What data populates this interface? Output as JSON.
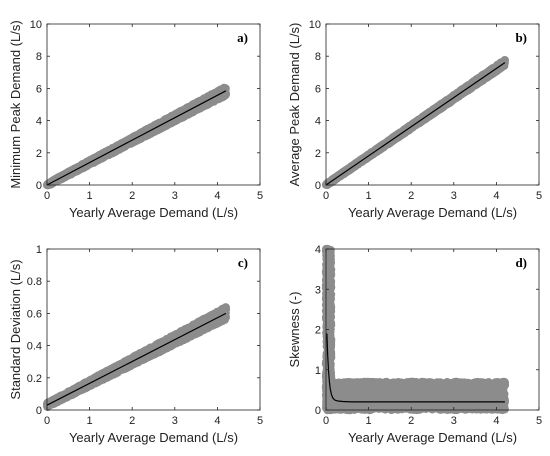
{
  "colors": {
    "scatter": "#8c8c8c",
    "fit_line": "#000000",
    "axes": "#222222",
    "background": "#ffffff"
  },
  "chart_data": [
    {
      "type": "scatter",
      "panel_label": "a)",
      "xlabel": "Yearly Average Demand (L/s)",
      "ylabel": "Minimum Peak Demand (L/s)",
      "xlim": [
        0,
        5
      ],
      "ylim": [
        0,
        10
      ],
      "xticks": [
        0,
        1,
        2,
        3,
        4,
        5
      ],
      "yticks": [
        0,
        2,
        4,
        6,
        8,
        10
      ],
      "grid": false,
      "points": {
        "x_range": [
          0,
          4.2
        ],
        "y_center_slope": 1.39,
        "y_spread": 0.18
      },
      "fit_line": {
        "x": [
          0,
          4.2
        ],
        "y": [
          0,
          5.85
        ]
      }
    },
    {
      "type": "scatter",
      "panel_label": "b)",
      "xlabel": "Yearly Average Demand (L/s)",
      "ylabel": "Average Peak Demand (L/s)",
      "xlim": [
        0,
        5
      ],
      "ylim": [
        0,
        10
      ],
      "xticks": [
        0,
        1,
        2,
        3,
        4,
        5
      ],
      "yticks": [
        0,
        2,
        4,
        6,
        8,
        10
      ],
      "grid": false,
      "points": {
        "x_range": [
          0,
          4.2
        ],
        "y_center_slope": 1.81,
        "y_spread": 0.12
      },
      "fit_line": {
        "x": [
          0,
          4.2
        ],
        "y": [
          0,
          7.6
        ]
      }
    },
    {
      "type": "scatter",
      "panel_label": "c)",
      "xlabel": "Yearly Average Demand (L/s)",
      "ylabel": "Standard Deviation (L/s)",
      "xlim": [
        0,
        5
      ],
      "ylim": [
        0,
        1
      ],
      "xticks": [
        0,
        1,
        2,
        3,
        4,
        5
      ],
      "yticks": [
        0,
        0.2,
        0.4,
        0.6,
        0.8,
        1
      ],
      "grid": false,
      "points": {
        "x_range": [
          0,
          4.2
        ],
        "y_at_zero": 0.03,
        "y_center_slope": 0.136,
        "y_spread": 0.025
      },
      "fit_line": {
        "x": [
          0,
          4.2
        ],
        "y": [
          0.03,
          0.6
        ]
      }
    },
    {
      "type": "scatter",
      "panel_label": "d)",
      "xlabel": "Yearly Average Demand (L/s)",
      "ylabel": "Skewness (-)",
      "xlim": [
        0,
        5
      ],
      "ylim": [
        0,
        4
      ],
      "xticks": [
        0,
        1,
        2,
        3,
        4,
        5
      ],
      "yticks": [
        0,
        1,
        2,
        3,
        4
      ],
      "grid": false,
      "points": {
        "x_range": [
          0,
          4.2
        ],
        "y_range": [
          0,
          4
        ],
        "dense_band_max": 0.7
      },
      "fit_line": {
        "x": [
          0.02,
          0.04,
          0.06,
          0.08,
          0.1,
          0.13,
          0.16,
          0.2,
          0.25,
          0.3,
          0.4,
          0.6,
          1.0,
          2.0,
          3.0,
          4.2
        ],
        "y": [
          1.9,
          1.35,
          0.95,
          0.7,
          0.52,
          0.38,
          0.3,
          0.25,
          0.23,
          0.22,
          0.21,
          0.2,
          0.2,
          0.2,
          0.2,
          0.2
        ]
      }
    }
  ]
}
